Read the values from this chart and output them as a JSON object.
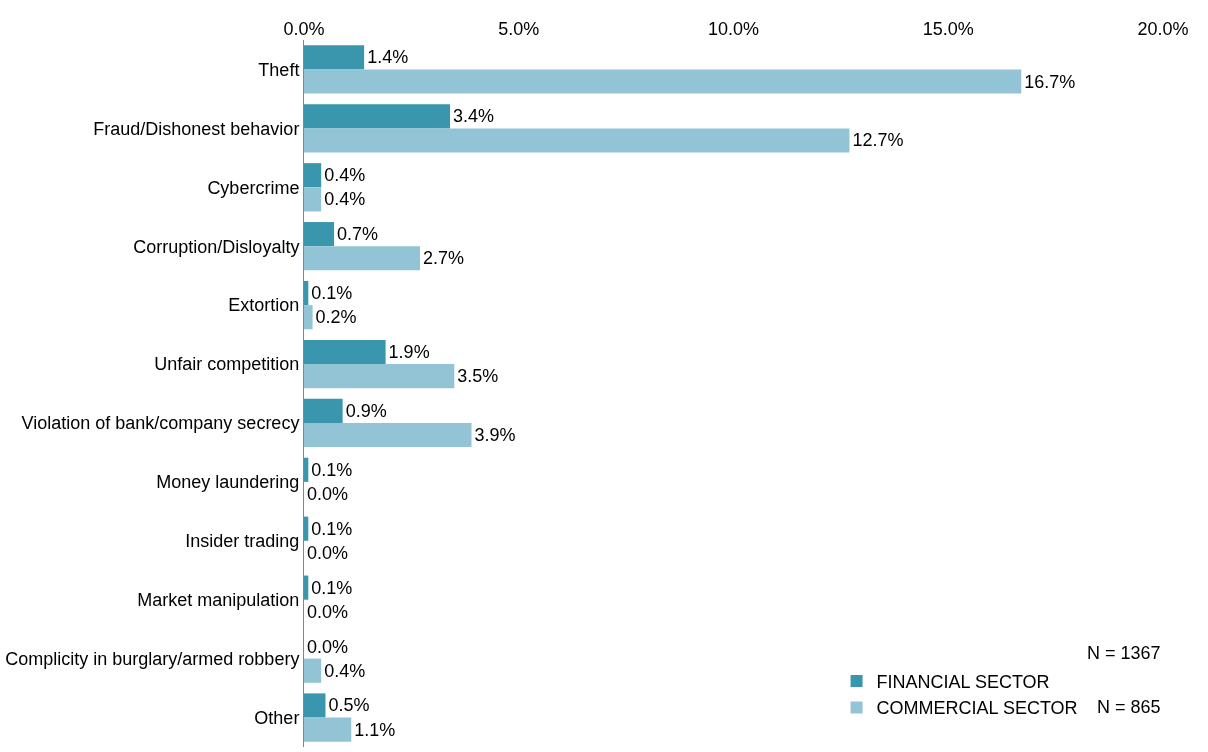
{
  "chart_data": {
    "type": "bar",
    "orientation": "horizontal",
    "categories": [
      "Theft",
      "Fraud/Dishonest behavior",
      "Cybercrime",
      "Corruption/Disloyalty",
      "Extortion",
      "Unfair competition",
      "Violation of bank/company secrecy",
      "Money laundering",
      "Insider trading",
      "Market manipulation",
      "Complicity in burglary/armed robbery",
      "Other"
    ],
    "series": [
      {
        "name": "FINANCIAL SECTOR",
        "color": "#3a96ad",
        "values": [
          1.4,
          3.4,
          0.4,
          0.7,
          0.1,
          1.9,
          0.9,
          0.1,
          0.1,
          0.1,
          0.0,
          0.5
        ],
        "value_labels": [
          "1.4%",
          "3.4%",
          "0.4%",
          "0.7%",
          "0.1%",
          "1.9%",
          "0.9%",
          "0.1%",
          "0.1%",
          "0.1%",
          "0.0%",
          "0.5%"
        ]
      },
      {
        "name": "COMMERCIAL SECTOR",
        "color": "#92c4d6",
        "values": [
          16.7,
          12.7,
          0.4,
          2.7,
          0.2,
          3.5,
          3.9,
          0.0,
          0.0,
          0.0,
          0.4,
          1.1
        ],
        "value_labels": [
          "16.7%",
          "12.7%",
          "0.4%",
          "2.7%",
          "0.2%",
          "3.5%",
          "3.9%",
          "0.0%",
          "0.0%",
          "0.0%",
          "0.4%",
          "1.1%"
        ]
      }
    ],
    "xlim": [
      0,
      20
    ],
    "xticks": [
      {
        "value": 0,
        "label": "0.0%"
      },
      {
        "value": 5,
        "label": "5.0%"
      },
      {
        "value": 10,
        "label": "10.0%"
      },
      {
        "value": 15,
        "label": "15.0%"
      },
      {
        "value": 20,
        "label": "20.0%"
      }
    ],
    "grid": false,
    "legend": "bottom right",
    "annotations": [
      "N = 1367",
      "N = 865"
    ]
  }
}
